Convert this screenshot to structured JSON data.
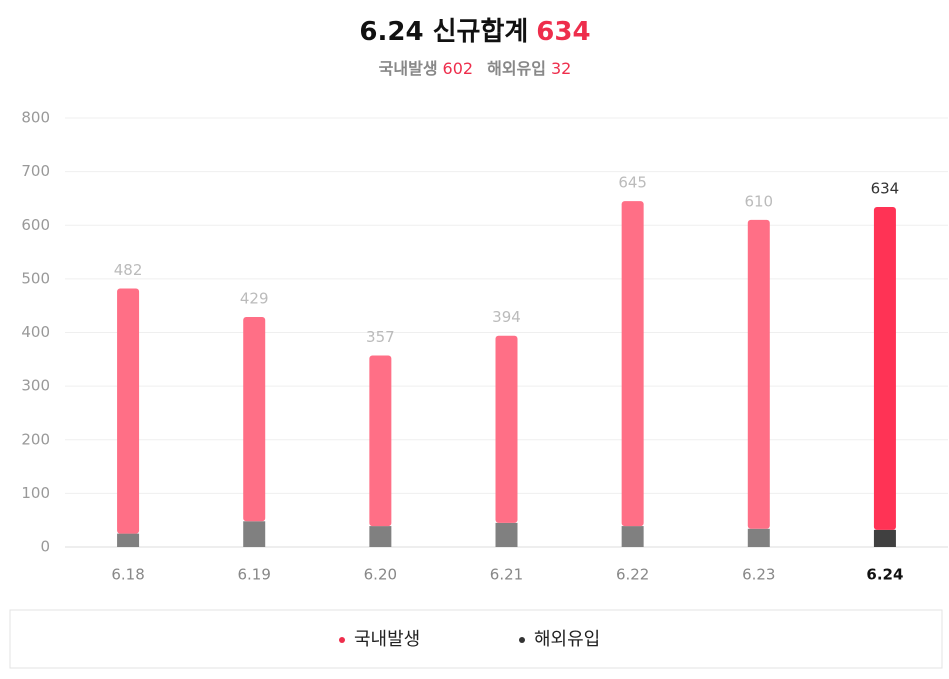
{
  "chart_data": {
    "type": "stacked_bar",
    "title": "6.24 신규합계",
    "title_value": "634",
    "subtitle": [
      {
        "label": "국내발생",
        "value": "602"
      },
      {
        "label": "해외유입",
        "value": "32"
      }
    ],
    "categories": [
      "6.18",
      "6.19",
      "6.20",
      "6.21",
      "6.22",
      "6.23",
      "6.24"
    ],
    "emphasis": [
      false,
      false,
      false,
      false,
      false,
      false,
      true
    ],
    "series": [
      {
        "name": "해외유입",
        "color": "#808080",
        "colors": [
          "#808080",
          "#808080",
          "#808080",
          "#808080",
          "#808080",
          "#808080",
          "#404040"
        ],
        "values": [
          25,
          48,
          39,
          45,
          39,
          34,
          32
        ]
      },
      {
        "name": "국내발생",
        "color": "#ff6f86",
        "colors": [
          "#ff6f86",
          "#ff6f86",
          "#ff6f86",
          "#ff6f86",
          "#ff6f86",
          "#ff6f86",
          "#ff3355"
        ],
        "values": [
          457,
          381,
          318,
          349,
          606,
          576,
          602
        ]
      }
    ],
    "totals": [
      "482",
      "429",
      "357",
      "394",
      "645",
      "610",
      "634"
    ],
    "ylim": [
      0,
      800
    ],
    "yticks": [
      0,
      100,
      200,
      300,
      400,
      500,
      600,
      700,
      800
    ],
    "grid": true,
    "legend_position": "bottom"
  }
}
